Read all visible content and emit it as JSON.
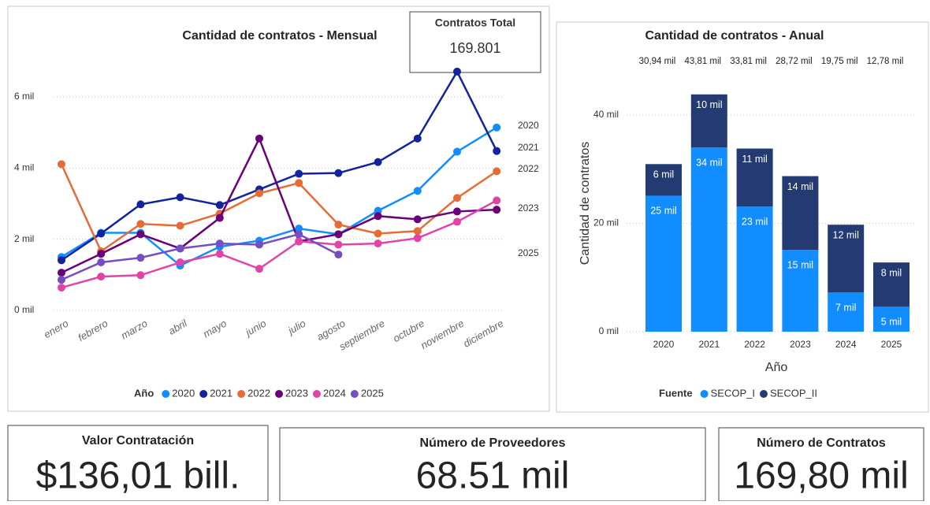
{
  "chart_data": [
    {
      "type": "line",
      "title": "Cantidad de contratos - Mensual",
      "legend_title": "Año",
      "categories": [
        "enero",
        "febrero",
        "marzo",
        "abril",
        "mayo",
        "junio",
        "julio",
        "agosto",
        "septiembre",
        "octubre",
        "noviembre",
        "diciembre"
      ],
      "series": [
        {
          "name": "2020",
          "color": "#118DFF",
          "values": [
            1.5,
            2.18,
            2.18,
            1.26,
            1.79,
            1.96,
            2.3,
            2.14,
            2.8,
            3.36,
            4.46,
            5.14
          ]
        },
        {
          "name": "2021",
          "color": "#12239E",
          "values": [
            1.41,
            2.16,
            2.98,
            3.18,
            2.96,
            3.4,
            3.84,
            3.86,
            4.17,
            4.83,
            6.71,
            4.48
          ]
        },
        {
          "name": "2022",
          "color": "#E66C37",
          "values": [
            4.11,
            1.66,
            2.43,
            2.38,
            2.72,
            3.29,
            3.58,
            2.41,
            2.16,
            2.23,
            3.16,
            3.91
          ]
        },
        {
          "name": "2023",
          "color": "#6B007B",
          "values": [
            1.06,
            1.59,
            2.14,
            1.74,
            2.6,
            4.83,
            1.94,
            2.14,
            2.65,
            2.56,
            2.78,
            2.83
          ]
        },
        {
          "name": "2024",
          "color": "#E044A7",
          "values": [
            0.64,
            0.95,
            0.99,
            1.35,
            1.59,
            1.17,
            1.94,
            1.85,
            1.88,
            2.03,
            2.49,
            3.09
          ]
        },
        {
          "name": "2025",
          "color": "#744EC2",
          "values": [
            0.86,
            1.35,
            1.48,
            1.74,
            1.88,
            1.85,
            2.14,
            1.57,
            null,
            null,
            null,
            null
          ]
        }
      ],
      "end_labels": [
        "2020",
        "2021",
        "2022",
        "2023",
        "2025"
      ],
      "ylim": [
        0,
        6.6
      ],
      "yticks": [
        {
          "value": 0,
          "label": "0 mil"
        },
        {
          "value": 2,
          "label": "2 mil"
        },
        {
          "value": 4,
          "label": "4 mil"
        },
        {
          "value": 6,
          "label": "6 mil"
        }
      ],
      "grid": true
    },
    {
      "type": "stacked_bar",
      "title": "Cantidad de contratos - Anual",
      "x_label": "Año",
      "y_label": "Cantidad de contratos",
      "legend_title": "Fuente",
      "categories": [
        "2020",
        "2021",
        "2022",
        "2023",
        "2024",
        "2025"
      ],
      "series": [
        {
          "name": "SECOP_I",
          "color": "#118DFF",
          "values": [
            25.1,
            34,
            23.1,
            15.1,
            7.27,
            4.6
          ],
          "value_labels": [
            "25 mil",
            "34 mil",
            "23 mil",
            "15 mil",
            "7 mil",
            "5 mil"
          ]
        },
        {
          "name": "SECOP_II",
          "color": "#243A73",
          "values": [
            5.84,
            9.81,
            10.71,
            13.62,
            12.48,
            8.18
          ],
          "value_labels": [
            "6 mil",
            "10 mil",
            "11 mil",
            "14 mil",
            "12 mil",
            "8 mil"
          ]
        }
      ],
      "total_labels": [
        "30,94 mil",
        "43,81 mil",
        "33,81 mil",
        "28,72 mil",
        "19,75 mil",
        "12,78 mil"
      ],
      "ylim": [
        0,
        44
      ],
      "yticks": [
        {
          "value": 0,
          "label": "0 mil"
        },
        {
          "value": 20,
          "label": "20 mil"
        },
        {
          "value": 40,
          "label": "40 mil"
        }
      ],
      "grid": true
    }
  ],
  "total_box": {
    "title": "Contratos Total",
    "value": "169.801"
  },
  "cards": [
    {
      "title": "Valor Contratación",
      "value": "$136,01 bill."
    },
    {
      "title": "Número de Proveedores",
      "value": "68.51 mil"
    },
    {
      "title": "Número de Contratos",
      "value": "169,80 mil"
    }
  ]
}
